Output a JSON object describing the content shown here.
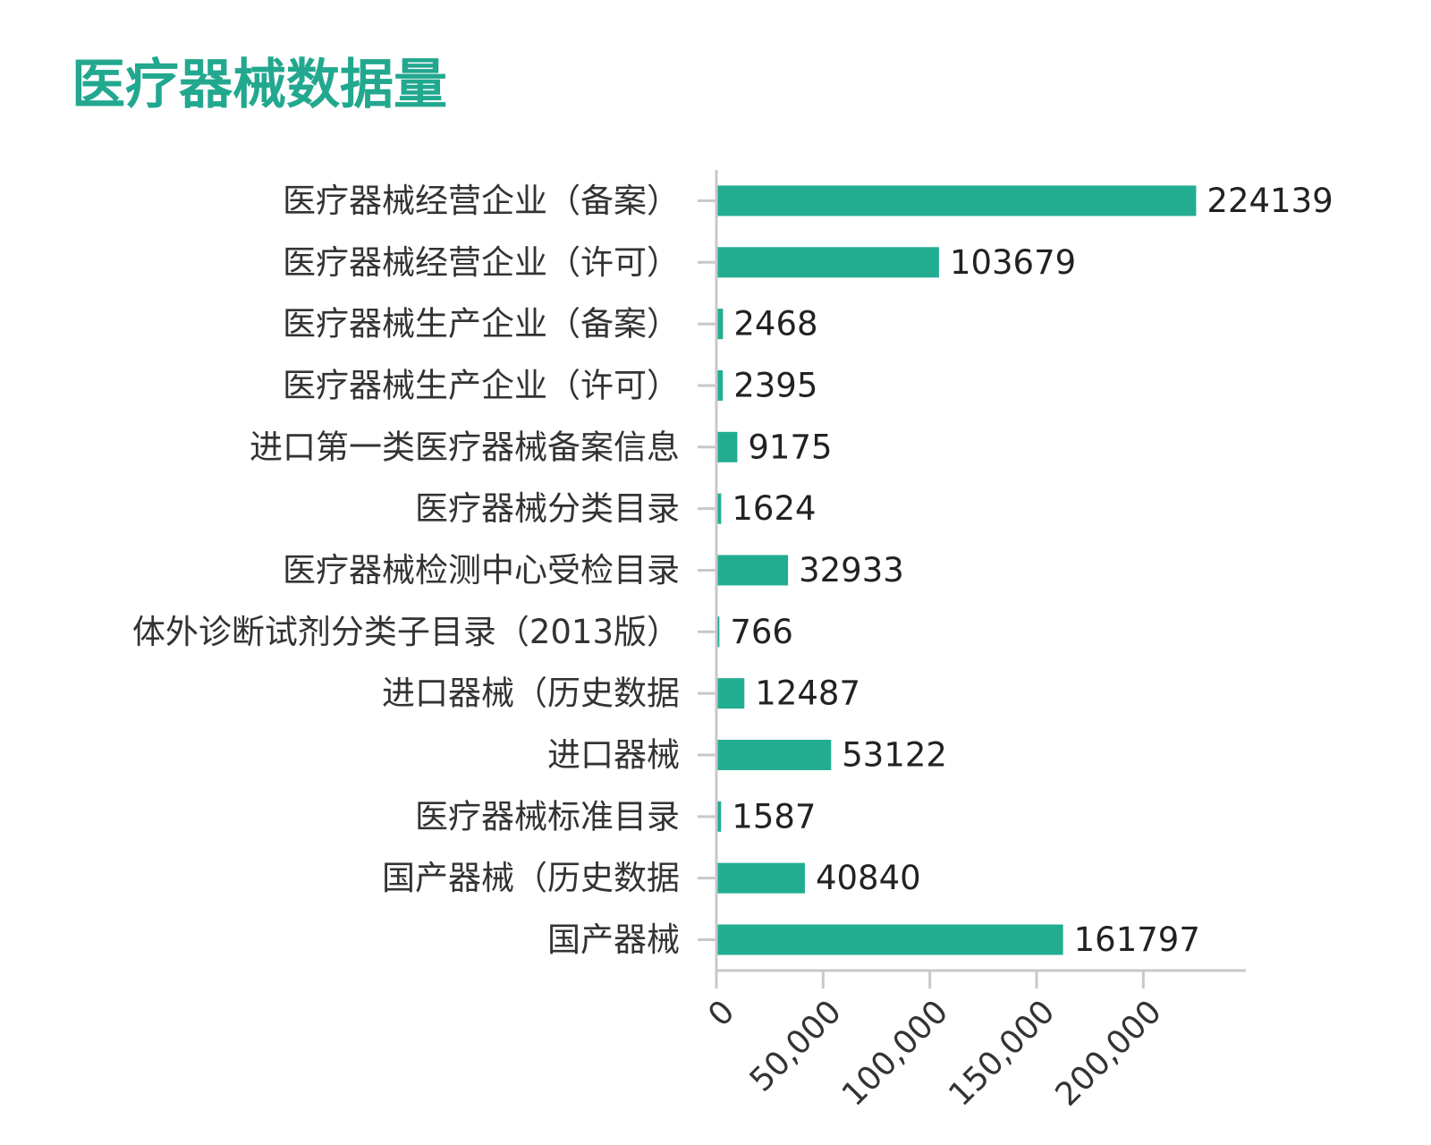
{
  "title": "医疗器械数据量",
  "colors": {
    "title": "#22a88f",
    "bar": "#22ad91",
    "axis": "#c8c8c8",
    "text": "#333333"
  },
  "chart_data": {
    "type": "bar",
    "orientation": "horizontal",
    "title": "医疗器械数据量",
    "xlabel": "",
    "ylabel": "",
    "xlim": [
      0,
      247000
    ],
    "xticks": [
      0,
      50000,
      100000,
      150000,
      200000
    ],
    "xtick_labels": [
      "0",
      "50,000",
      "100,000",
      "150,000",
      "200,000"
    ],
    "grid": false,
    "categories": [
      "医疗器械经营企业（备案）",
      "医疗器械经营企业（许可）",
      "医疗器械生产企业（备案）",
      "医疗器械生产企业（许可）",
      "进口第一类医疗器械备案信息",
      "医疗器械分类目录",
      "医疗器械检测中心受检目录",
      "体外诊断试剂分类子目录（2013版）",
      "进口器械（历史数据",
      "进口器械",
      "医疗器械标准目录",
      "国产器械（历史数据",
      "国产器械"
    ],
    "values": [
      224139,
      103679,
      2468,
      2395,
      9175,
      1624,
      32933,
      766,
      12487,
      53122,
      1587,
      40840,
      161797
    ],
    "value_labels": [
      "224139",
      "103679",
      "2468",
      "2395",
      "9175",
      "1624",
      "32933",
      "766",
      "12487",
      "53122",
      "1587",
      "40840",
      "161797"
    ]
  }
}
